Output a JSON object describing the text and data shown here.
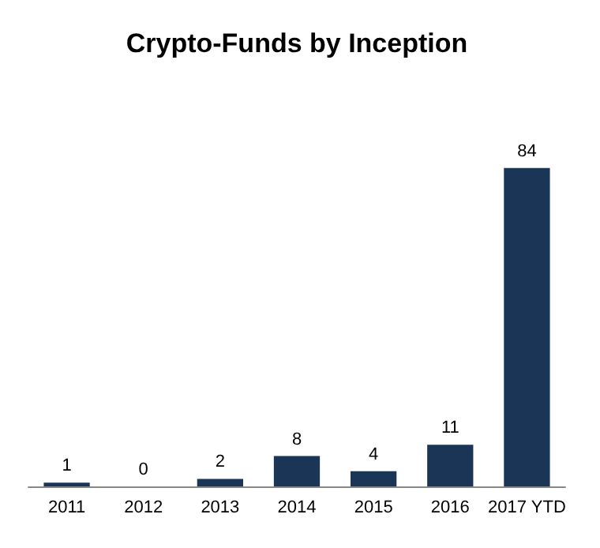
{
  "chart_data": {
    "type": "bar",
    "title": "Crypto-Funds by Inception",
    "categories": [
      "2011",
      "2012",
      "2013",
      "2014",
      "2015",
      "2016",
      "2017 YTD"
    ],
    "values": [
      1,
      0,
      2,
      8,
      4,
      11,
      84
    ],
    "color": "#1b3556",
    "data_labels": true
  }
}
